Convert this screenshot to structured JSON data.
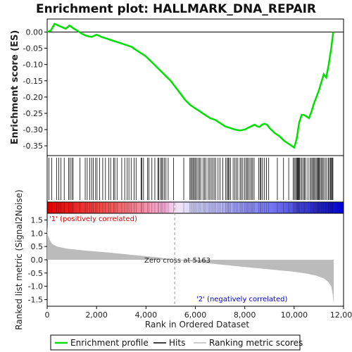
{
  "chart_data": {
    "type": "line",
    "title": "Enrichment plot: HALLMARK_DNA_REPAIR",
    "top_panel": {
      "ylabel": "Enrichment score (ES)",
      "ylim": [
        -0.38,
        0.04
      ],
      "yticks": [
        "0.00",
        "-0.05",
        "-0.10",
        "-0.15",
        "-0.20",
        "-0.25",
        "-0.30",
        "-0.35"
      ],
      "ytick_values": [
        0.0,
        -0.05,
        -0.1,
        -0.15,
        -0.2,
        -0.25,
        -0.3,
        -0.35
      ],
      "series": [
        {
          "name": "Enrichment profile",
          "color": "#00e000",
          "x": [
            0,
            150,
            300,
            450,
            600,
            750,
            900,
            1050,
            1200,
            1400,
            1600,
            1800,
            2000,
            2200,
            2400,
            2600,
            2800,
            3000,
            3200,
            3400,
            3600,
            3800,
            4000,
            4200,
            4400,
            4600,
            4800,
            5000,
            5200,
            5400,
            5600,
            5800,
            6000,
            6200,
            6400,
            6600,
            6800,
            7000,
            7200,
            7400,
            7600,
            7800,
            8000,
            8200,
            8400,
            8500,
            8600,
            8700,
            8800,
            8900,
            9000,
            9200,
            9400,
            9600,
            9800,
            10000,
            10100,
            10200,
            10300,
            10400,
            10500,
            10600,
            10700,
            10800,
            10900,
            11000,
            11100,
            11200,
            11300,
            11400,
            11500,
            11580
          ],
          "y": [
            0.0,
            0.005,
            0.025,
            0.02,
            0.015,
            0.01,
            0.02,
            0.012,
            0.005,
            -0.005,
            -0.012,
            -0.015,
            -0.008,
            -0.015,
            -0.02,
            -0.025,
            -0.03,
            -0.035,
            -0.04,
            -0.045,
            -0.055,
            -0.065,
            -0.075,
            -0.09,
            -0.105,
            -0.12,
            -0.135,
            -0.15,
            -0.17,
            -0.19,
            -0.21,
            -0.225,
            -0.235,
            -0.245,
            -0.255,
            -0.265,
            -0.27,
            -0.28,
            -0.29,
            -0.295,
            -0.3,
            -0.303,
            -0.3,
            -0.292,
            -0.285,
            -0.29,
            -0.292,
            -0.285,
            -0.282,
            -0.285,
            -0.295,
            -0.31,
            -0.32,
            -0.335,
            -0.345,
            -0.355,
            -0.33,
            -0.28,
            -0.255,
            -0.255,
            -0.26,
            -0.265,
            -0.245,
            -0.22,
            -0.2,
            -0.18,
            -0.155,
            -0.13,
            -0.14,
            -0.1,
            -0.05,
            0.0
          ]
        }
      ]
    },
    "hits": {
      "name": "Hits",
      "x": [
        70,
        180,
        380,
        470,
        560,
        690,
        870,
        930,
        1000,
        1050,
        1330,
        1540,
        1620,
        1720,
        1800,
        1870,
        1960,
        2020,
        2120,
        2250,
        2360,
        2490,
        2570,
        2690,
        2740,
        2830,
        3020,
        3140,
        3240,
        3310,
        3400,
        3520,
        3600,
        3800,
        3830,
        3900,
        4060,
        4120,
        4240,
        4360,
        4480,
        4520,
        4590,
        4640,
        4680,
        4750,
        4810,
        4900,
        5120,
        5530,
        5780,
        5820,
        5870,
        5910,
        5960,
        6000,
        6060,
        6110,
        6170,
        6220,
        6310,
        6370,
        6430,
        6520,
        6580,
        6640,
        6700,
        6760,
        6820,
        6920,
        7000,
        7110,
        7220,
        7280,
        7330,
        7360,
        7420,
        7530,
        7600,
        7660,
        7720,
        7810,
        7860,
        7920,
        7990,
        8050,
        8100,
        8150,
        8210,
        8270,
        8320,
        8380,
        8560,
        8620,
        8660,
        8720,
        8800,
        8880,
        8970,
        9320,
        9570,
        9780,
        9960,
        10010,
        10060,
        10100,
        10130,
        10160,
        10190,
        10220,
        10270,
        10320,
        10380,
        10420,
        10470,
        10560,
        10640,
        10690,
        10740,
        10780,
        10820,
        10870,
        10920,
        10950,
        10990,
        11020,
        11060,
        11110,
        11150,
        11200,
        11260,
        11320,
        11390,
        11430,
        11470,
        11510,
        11540,
        11570
      ]
    },
    "bottom_panel": {
      "ylabel": "Ranked list metric (Signal2Noise)",
      "xlabel": "Rank in Ordered Dataset",
      "ylim": [
        -1.75,
        1.75
      ],
      "yticks": [
        "1.5",
        "1.0",
        "0.5",
        "0.0",
        "-0.5",
        "-1.0",
        "-1.5"
      ],
      "ytick_values": [
        1.5,
        1.0,
        0.5,
        0.0,
        -0.5,
        -1.0,
        -1.5
      ],
      "series": [
        {
          "name": "Ranking metric scores",
          "color": "#bbbbbb",
          "x": [
            0,
            20,
            100,
            200,
            400,
            800,
            1500,
            2500,
            3500,
            4500,
            5163,
            6000,
            7000,
            8000,
            9000,
            10000,
            10500,
            10900,
            11200,
            11400,
            11500,
            11560,
            11600
          ],
          "y": [
            1.3,
            0.95,
            0.75,
            0.6,
            0.5,
            0.42,
            0.35,
            0.27,
            0.18,
            0.09,
            0.0,
            -0.08,
            -0.18,
            -0.27,
            -0.36,
            -0.45,
            -0.52,
            -0.6,
            -0.7,
            -0.85,
            -1.0,
            -1.3,
            -1.65
          ]
        }
      ]
    },
    "xlim": [
      0,
      12000
    ],
    "xticks": [
      "0",
      "2,000",
      "4,000",
      "6,000",
      "8,000",
      "10,000",
      "12,000"
    ],
    "xtick_values": [
      0,
      2000,
      4000,
      6000,
      8000,
      10000,
      12000
    ],
    "zero_cross": 5163,
    "n_ranks": 11600,
    "annotations": {
      "zero_cross": "Zero cross at 5163",
      "positive": "'1' (positively correlated)",
      "negative": "'2' (negatively correlated)"
    },
    "colors": {
      "positive": "#dd0000",
      "negative": "#0000cc",
      "enrichment": "#00e000"
    },
    "legend": {
      "placement": "bottom",
      "items": [
        {
          "label": "Enrichment profile",
          "color": "#00e000"
        },
        {
          "label": "Hits",
          "color": "#000000"
        },
        {
          "label": "Ranking metric scores",
          "color": "#bbbbbb"
        }
      ]
    },
    "grid": false
  }
}
